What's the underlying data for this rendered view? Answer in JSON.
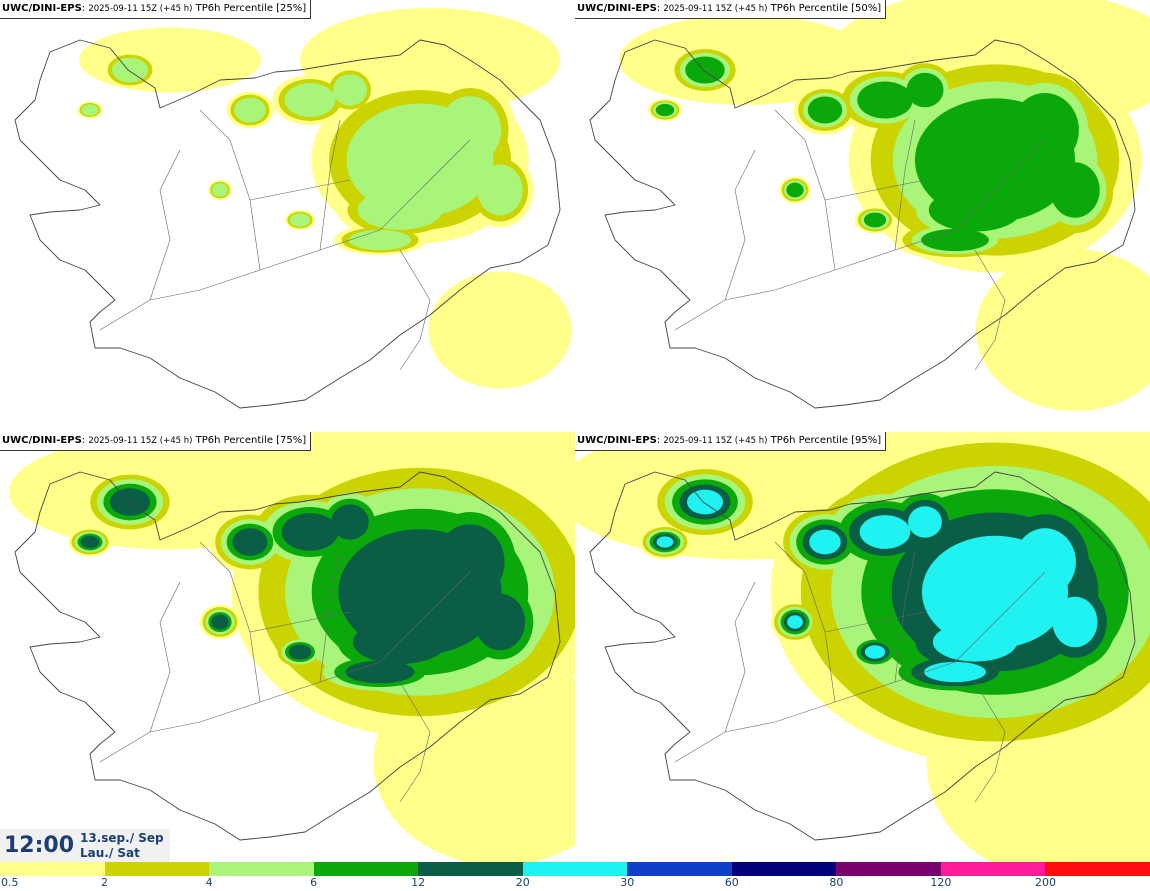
{
  "panels": [
    {
      "source": "UWC/DINI-EPS",
      "run": "2025-09-11 15Z (+45 h)",
      "product": "TP6h Percentile [25%]",
      "intensity": 0.25
    },
    {
      "source": "UWC/DINI-EPS",
      "run": "2025-09-11 15Z (+45 h)",
      "product": "TP6h Percentile [50%]",
      "intensity": 0.5
    },
    {
      "source": "UWC/DINI-EPS",
      "run": "2025-09-11 15Z (+45 h)",
      "product": "TP6h Percentile [75%]",
      "intensity": 0.75
    },
    {
      "source": "UWC/DINI-EPS",
      "run": "2025-09-11 15Z (+45 h)",
      "product": "TP6h Percentile [95%]",
      "intensity": 0.95
    }
  ],
  "valid_time": {
    "time": "12:00",
    "date_line1": "13.sep./ Sep",
    "date_line2": "Lau./ Sat"
  },
  "legend": {
    "labels": [
      "0.5",
      "2",
      "4",
      "6",
      "12",
      "20",
      "30",
      "60",
      "80",
      "120",
      "200"
    ],
    "colors": [
      "#ffff8a",
      "#cbd300",
      "#a8f57a",
      "#0aa80a",
      "#0a5e46",
      "#20f2f2",
      "#1040c8",
      "#04007a",
      "#7a006e",
      "#ff1c9a",
      "#ff0c0c"
    ]
  }
}
